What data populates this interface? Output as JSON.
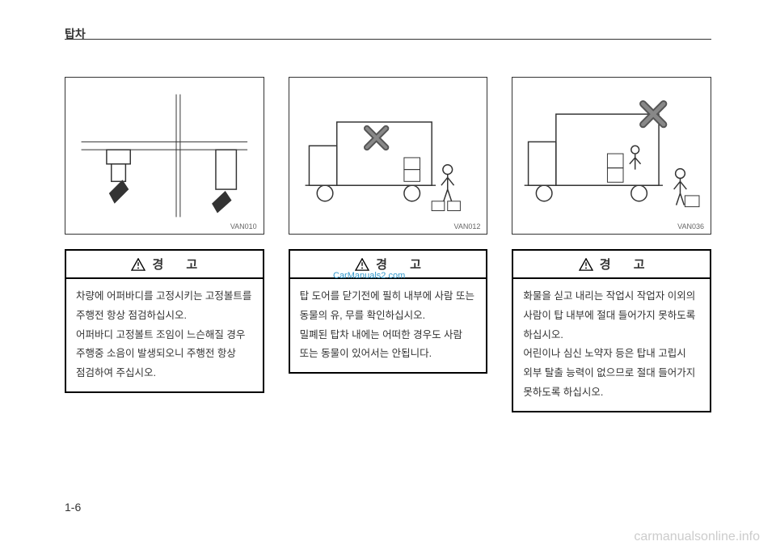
{
  "header": {
    "title": "탑차"
  },
  "columns": [
    {
      "illustration_code": "VAN010",
      "warning_label": "경  고",
      "warning_body": "차량에 어퍼바디를 고정시키는 고정볼트를 주행전 항상 점검하십시오.\n어퍼바디 고정볼트 조임이 느슨해질 경우 주행중 소음이 발생되오니 주행전 항상 점검하여 주십시오."
    },
    {
      "illustration_code": "VAN012",
      "warning_label": "경  고",
      "warning_body": "탑 도어를 닫기전에 필히 내부에 사람 또는 동물의 유, 무를 확인하십시오.\n밀폐된 탑차 내에는 어떠한 경우도 사람 또는 동물이 있어서는 안됩니다."
    },
    {
      "illustration_code": "VAN036",
      "warning_label": "경  고",
      "warning_body": "화물을 싣고 내리는 작업시 작업자 이외의 사람이 탑 내부에 절대 들어가지 못하도록 하십시오.\n어린이나 심신 노약자 등은 탑내 고립시 외부 탈출 능력이 없으므로 절대 들어가지 못하도록 하십시오."
    }
  ],
  "page_number": "1-6",
  "watermark_bottom": "carmanualsonline.info",
  "watermark_mid": "CarManuals2.com",
  "colors": {
    "text": "#333333",
    "border": "#000000",
    "watermark_gray": "#cccccc",
    "watermark_blue": "#3399cc",
    "x_mark": "#555555"
  }
}
